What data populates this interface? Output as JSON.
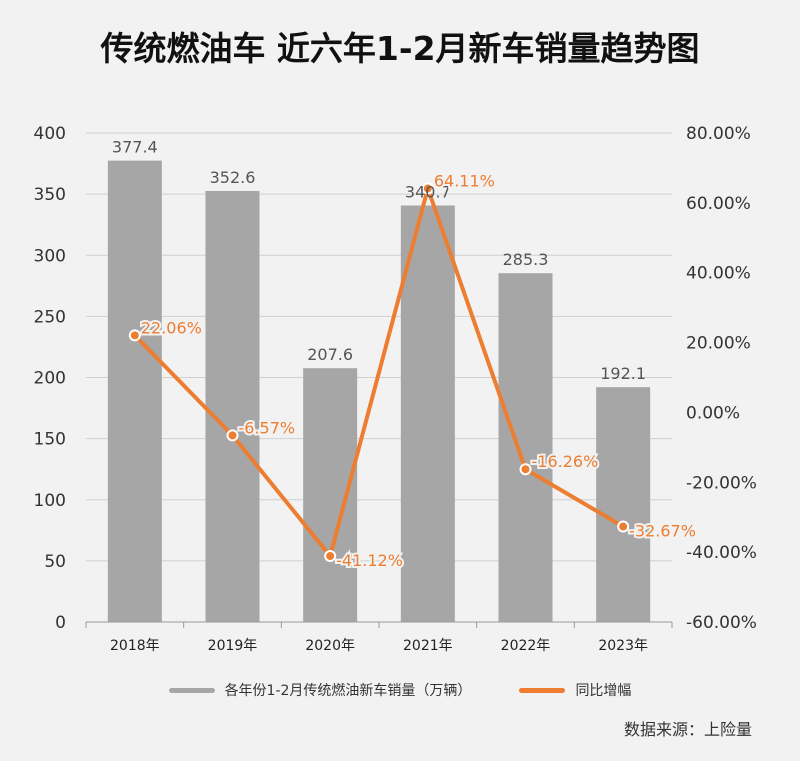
{
  "chart_data": {
    "type": "bar",
    "title": "传统燃油车 近六年1-2月新车销量趋势图",
    "categories": [
      "2018年",
      "2019年",
      "2020年",
      "2021年",
      "2022年",
      "2023年"
    ],
    "series": [
      {
        "name": "各年份1-2月传统燃油新车销量（万辆）",
        "type": "bar",
        "axis": "left",
        "values": [
          377.4,
          352.6,
          207.6,
          340.7,
          285.3,
          192.1
        ],
        "labels": [
          "377.4",
          "352.6",
          "207.6",
          "340.7",
          "285.3",
          "192.1"
        ],
        "color": "#a6a6a6"
      },
      {
        "name": "同比增幅",
        "type": "line",
        "axis": "right",
        "values": [
          22.06,
          -6.57,
          -41.12,
          64.11,
          -16.26,
          -32.67
        ],
        "labels": [
          "22.06%",
          "-6.57%",
          "-41.12%",
          "64.11%",
          "-16.26%",
          "-32.67%"
        ],
        "color": "#ed7d31"
      }
    ],
    "y_left": {
      "lim": [
        0,
        400
      ],
      "ticks": [
        0,
        50,
        100,
        150,
        200,
        250,
        300,
        350,
        400
      ],
      "tick_labels": [
        "0",
        "50",
        "100",
        "150",
        "200",
        "250",
        "300",
        "350",
        "400"
      ]
    },
    "y_right": {
      "lim": [
        -60,
        80
      ],
      "ticks": [
        -60,
        -40,
        -20,
        0,
        20,
        40,
        60,
        80
      ],
      "tick_labels": [
        "-60.00%",
        "-40.00%",
        "-20.00%",
        "0.00%",
        "20.00%",
        "40.00%",
        "60.00%",
        "80.00%"
      ]
    },
    "grid": true,
    "legend": "bottom",
    "source": "数据来源：上险量"
  }
}
